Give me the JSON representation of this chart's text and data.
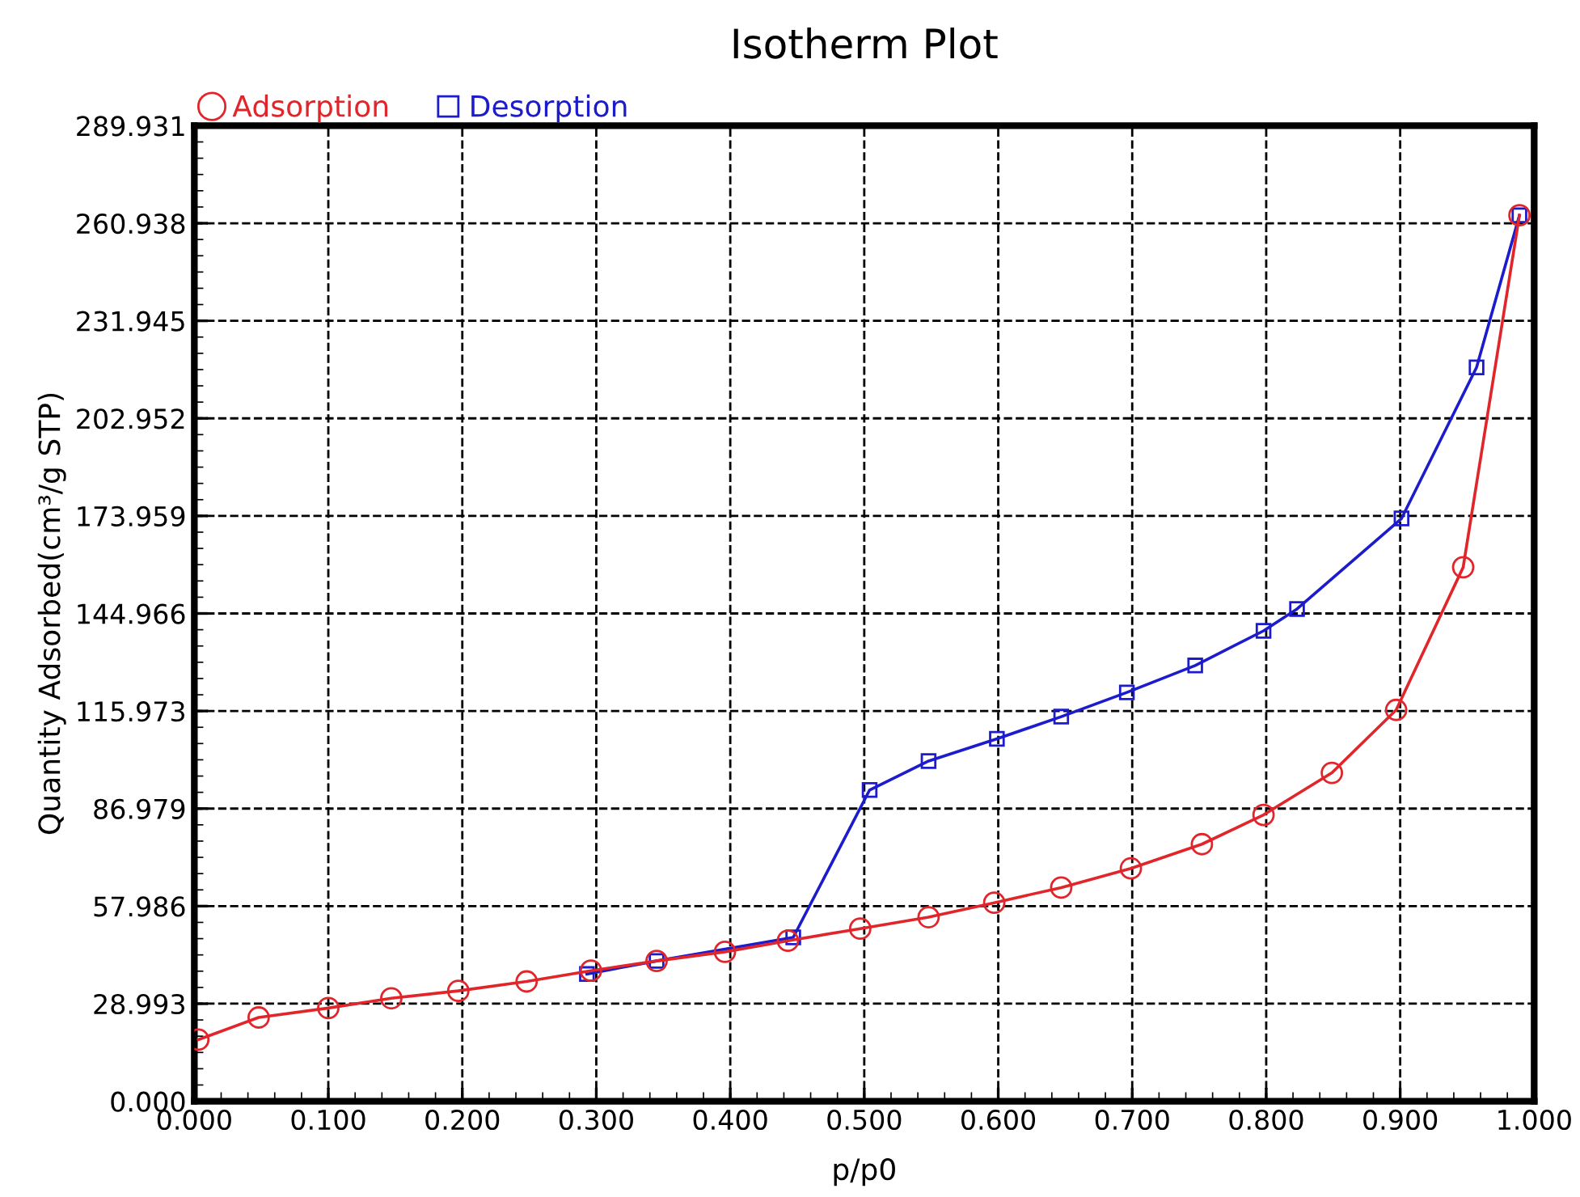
{
  "chart_data": {
    "type": "line",
    "title": "Isotherm Plot",
    "xlabel": "p/p0",
    "ylabel": "Quantity Adsorbed(cm³/g STP)",
    "xlim": [
      0,
      1
    ],
    "xticks": [
      {
        "value": 0,
        "label": "0.000"
      },
      {
        "value": 0.1,
        "label": "0.100"
      },
      {
        "value": 0.2,
        "label": "0.200"
      },
      {
        "value": 0.3,
        "label": "0.300"
      },
      {
        "value": 0.4,
        "label": "0.400"
      },
      {
        "value": 0.5,
        "label": "0.500"
      },
      {
        "value": 0.6,
        "label": "0.600"
      },
      {
        "value": 0.7,
        "label": "0.700"
      },
      {
        "value": 0.8,
        "label": "0.800"
      },
      {
        "value": 0.9,
        "label": "0.900"
      },
      {
        "value": 1,
        "label": "1.000"
      }
    ],
    "ylim": [
      0,
      289.931
    ],
    "yticks": [
      {
        "value": 0,
        "label": "0.000"
      },
      28.993,
      57.986,
      86.979,
      115.973,
      144.966,
      173.959,
      202.952,
      231.945,
      260.938,
      289.931
    ],
    "grid": true,
    "legend": "top left",
    "line_style": "solid",
    "series": [
      {
        "name": "Adsorption",
        "color": "#e0252b",
        "marker": "circle",
        "x": [
          0.003,
          0.048,
          0.1,
          0.147,
          0.197,
          0.248,
          0.296,
          0.345,
          0.396,
          0.443,
          0.497,
          0.548,
          0.597,
          0.647,
          0.699,
          0.752,
          0.798,
          0.849,
          0.897,
          0.947,
          0.989
        ],
        "values": [
          18.3,
          24.9,
          27.7,
          30.6,
          32.8,
          35.6,
          38.8,
          41.7,
          44.4,
          47.7,
          51.3,
          54.7,
          59.0,
          63.5,
          69.2,
          76.4,
          85.1,
          97.6,
          116.3,
          158.7,
          263.3
        ]
      },
      {
        "name": "Desorption",
        "color": "#1c1ccc",
        "marker": "square",
        "x": [
          0.989,
          0.957,
          0.901,
          0.823,
          0.798,
          0.747,
          0.696,
          0.647,
          0.599,
          0.548,
          0.504,
          0.447,
          0.345,
          0.293
        ],
        "values": [
          263.3,
          218.1,
          173.2,
          146.3,
          139.8,
          129.5,
          121.5,
          114.3,
          107.7,
          101.1,
          92.5,
          48.7,
          41.7,
          37.8
        ]
      }
    ]
  }
}
